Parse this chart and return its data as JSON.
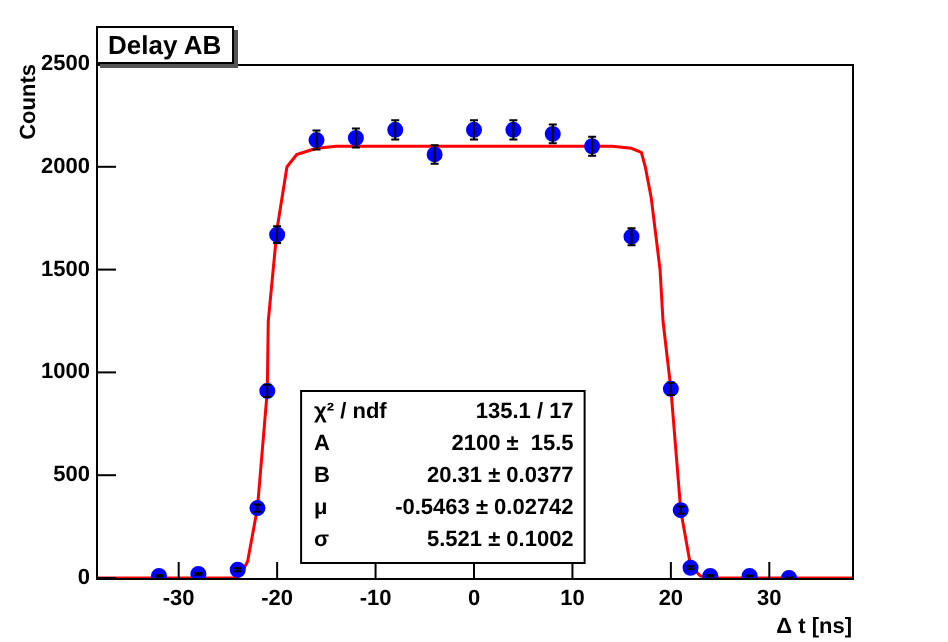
{
  "chart_data": {
    "type": "scatter",
    "title": "Delay AB",
    "xlabel": "Δ t [ns]",
    "ylabel": "Counts",
    "xlim": [
      -38.4,
      38.4
    ],
    "xticks": [
      -30,
      -20,
      -10,
      0,
      10,
      20,
      30
    ],
    "ylim": [
      0,
      2500
    ],
    "yticks": [
      0,
      500,
      1000,
      1500,
      2000,
      2500
    ],
    "marker": "circle",
    "annotations": [
      "χ² / ndf",
      "135.1 / 17",
      "A",
      "2100 ±  15.5",
      "B",
      "20.31 ± 0.0377",
      "μ",
      "-0.5463 ± 0.02742",
      "σ",
      "5.521 ± 0.1002"
    ],
    "series": [
      {
        "type": "scatter",
        "color": "#0000ff",
        "x": [
          -32,
          -28,
          -24,
          -22,
          -21,
          -20,
          -16,
          -12,
          -8,
          -4,
          0,
          4,
          8,
          12,
          16,
          20,
          21,
          22,
          24,
          28,
          32
        ],
        "values": [
          10,
          20,
          40,
          340,
          910,
          1670,
          2130,
          2140,
          2180,
          2060,
          2180,
          2180,
          2160,
          2100,
          1660,
          920,
          330,
          50,
          10,
          10,
          0
        ],
        "errors": [
          3,
          4,
          7,
          18,
          30,
          41,
          46,
          46,
          47,
          45,
          47,
          47,
          46,
          46,
          41,
          30,
          18,
          7,
          3,
          2,
          2
        ]
      },
      {
        "type": "line",
        "color": "#ff0000",
        "line_style": "solid",
        "marker": "none",
        "x": [
          -38.4,
          -24.5,
          -23.8,
          -23,
          -22,
          -21,
          -20.9,
          -20.4,
          -20,
          -19,
          -18,
          -16,
          -14,
          14,
          16,
          17,
          17.4,
          18,
          18.9,
          19.2,
          20,
          21,
          22,
          23,
          24,
          38.4
        ],
        "values": [
          0,
          0,
          10,
          80,
          340,
          910,
          1250,
          1500,
          1700,
          2000,
          2060,
          2090,
          2100,
          2100,
          2090,
          2070,
          2000,
          1850,
          1500,
          1250,
          920,
          330,
          60,
          10,
          0,
          0
        ]
      }
    ]
  }
}
